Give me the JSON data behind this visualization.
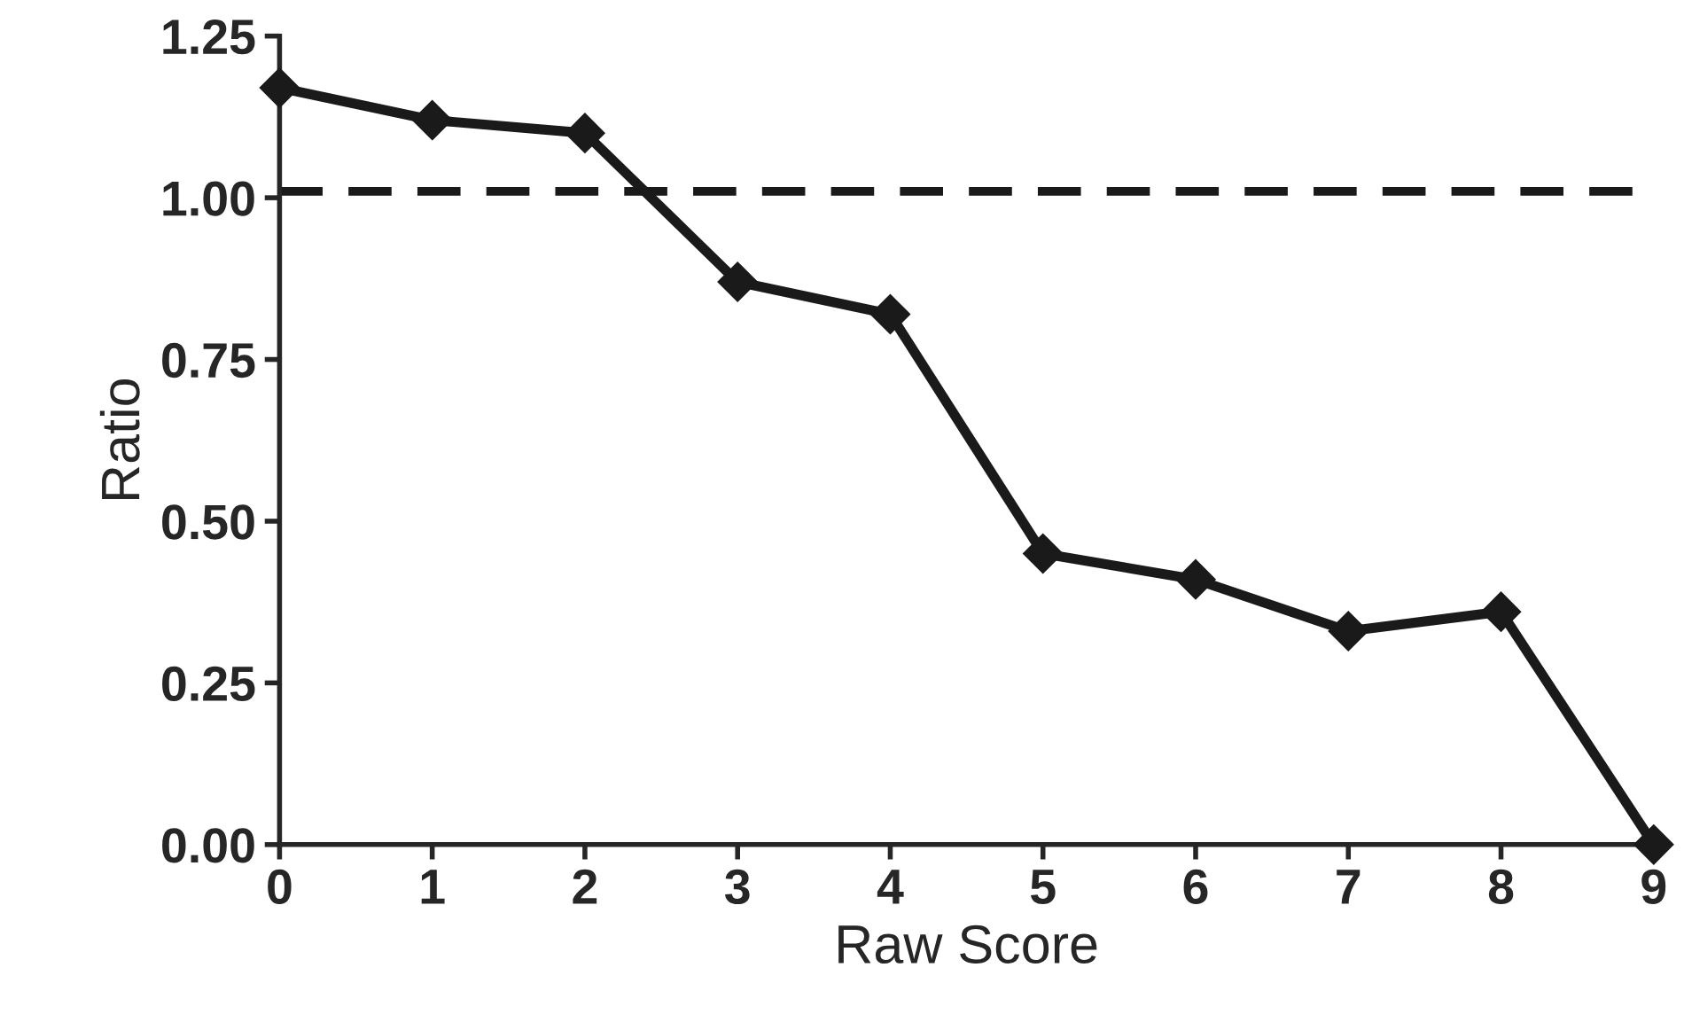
{
  "chart_data": {
    "type": "line",
    "xlabel": "Raw Score",
    "ylabel": "Ratio",
    "x": [
      0,
      1,
      2,
      3,
      4,
      5,
      6,
      7,
      8,
      9
    ],
    "series": [
      {
        "color": "#1a1a1a",
        "values": [
          1.17,
          1.12,
          1.1,
          0.87,
          0.82,
          0.45,
          0.41,
          0.33,
          0.36,
          0.0
        ]
      }
    ],
    "xlim": [
      0,
      9
    ],
    "xticks": [
      0,
      1,
      2,
      3,
      4,
      5,
      6,
      7,
      8,
      9
    ],
    "ylim": [
      0,
      1.25
    ],
    "yticks": [
      {
        "value": 0,
        "label": "0.00"
      },
      {
        "value": 0.25,
        "label": "0.25"
      },
      {
        "value": 0.5,
        "label": "0.50"
      },
      {
        "value": 0.75,
        "label": "0.75"
      },
      {
        "value": 1.0,
        "label": "1.00"
      },
      {
        "value": 1.25,
        "label": "1.25"
      }
    ],
    "ref_lines": [
      {
        "axis": "y",
        "value": 1.01,
        "color": "#1a1a1a",
        "line_style": "dashed"
      }
    ],
    "marker": "diamond",
    "line_style": "solid",
    "grid": false,
    "legend": false
  }
}
